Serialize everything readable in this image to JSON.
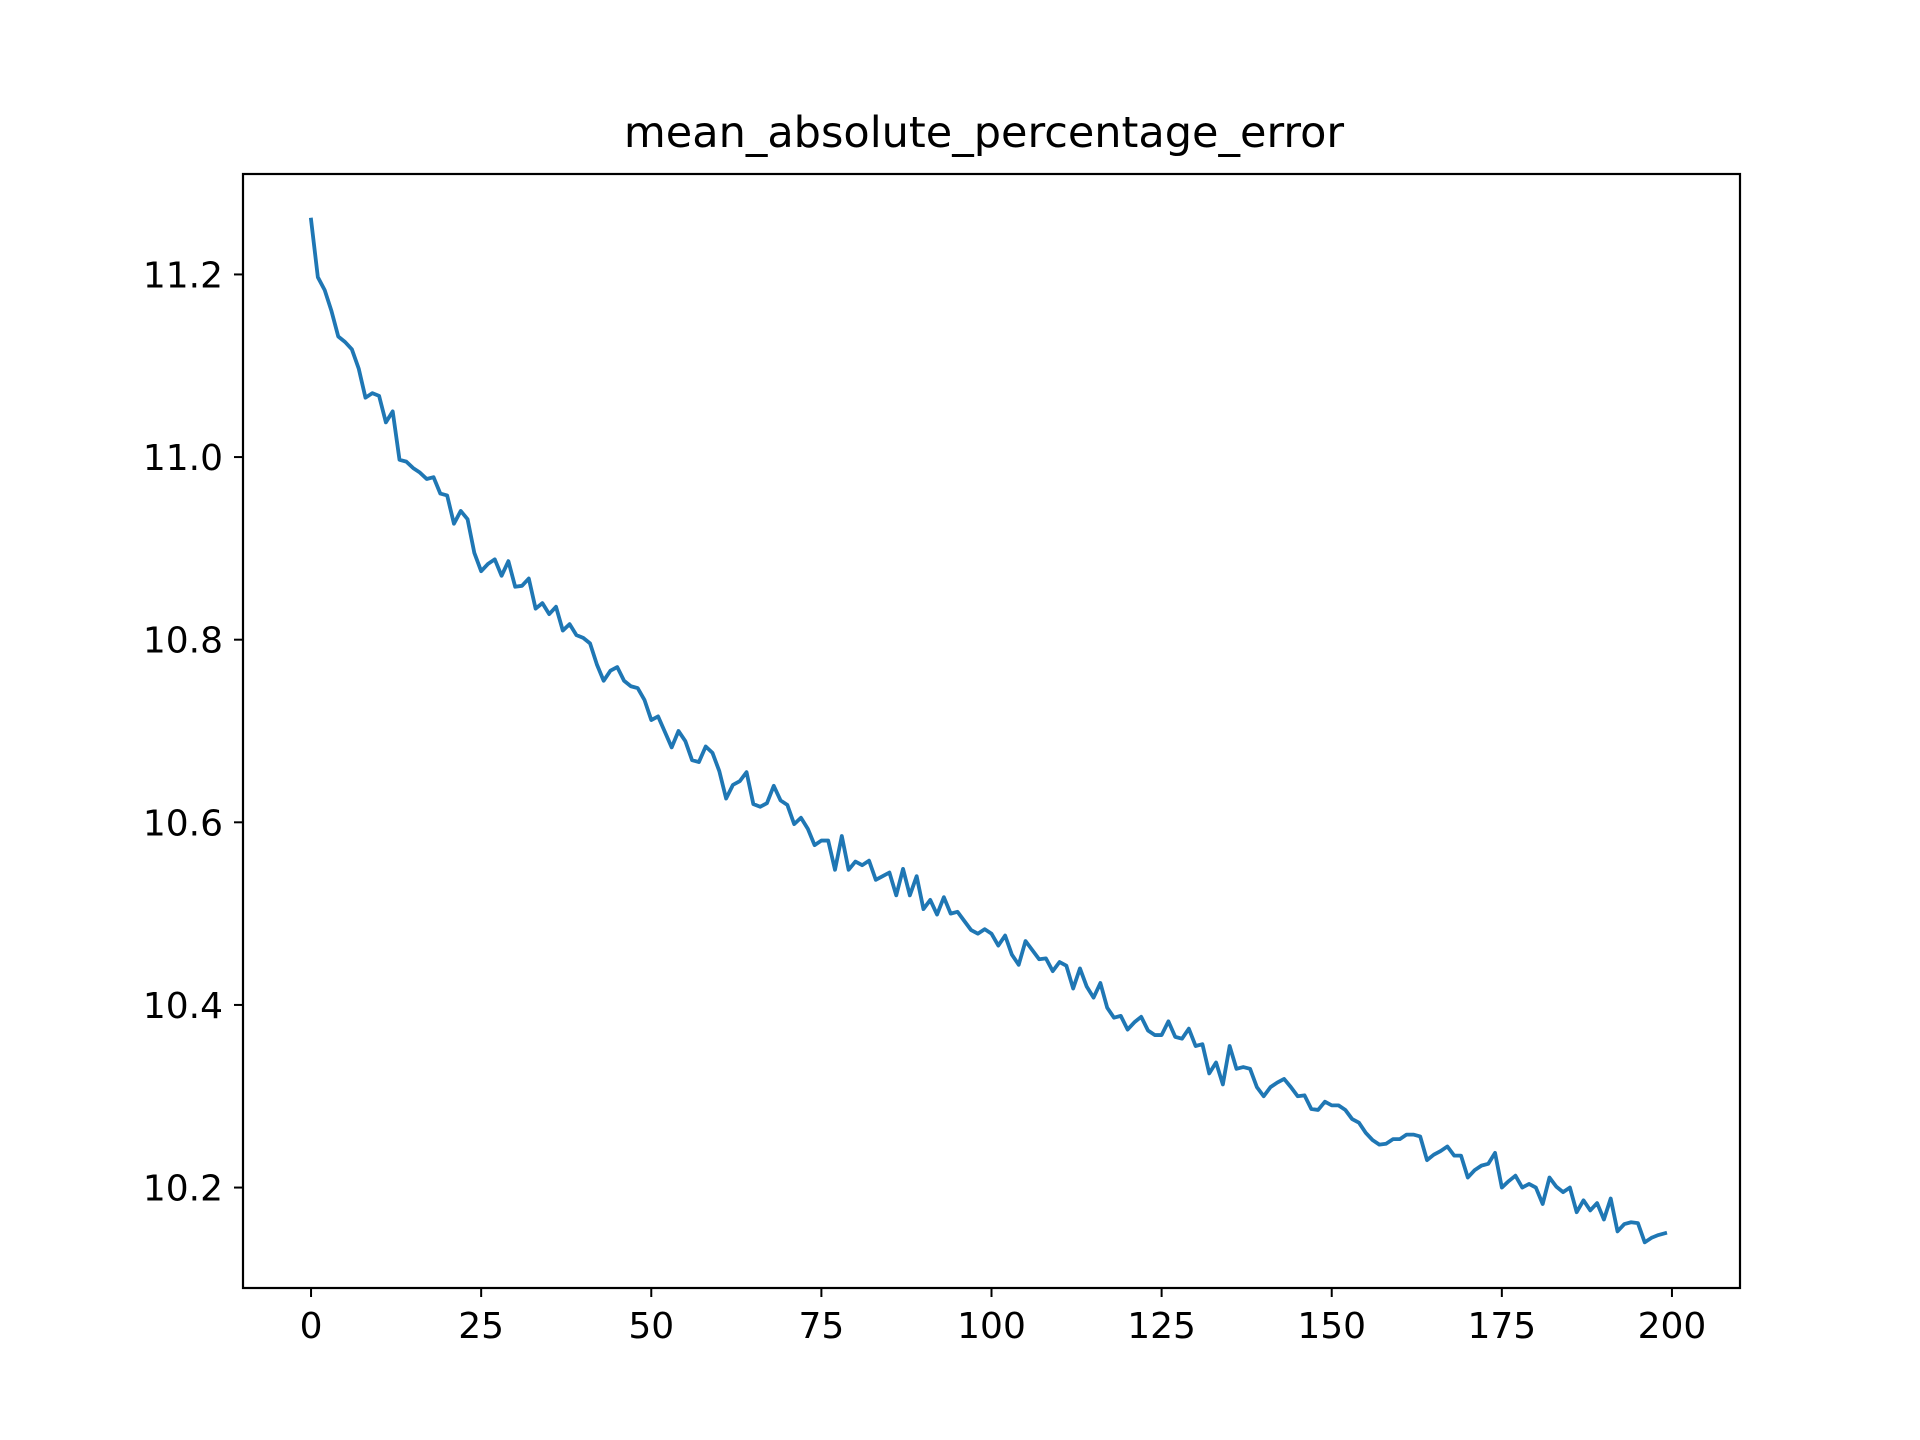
{
  "chart_data": {
    "type": "line",
    "title": "mean_absolute_percentage_error",
    "xlabel": "",
    "ylabel": "",
    "xlim": [
      -10,
      210
    ],
    "ylim": [
      10.09,
      11.31
    ],
    "x_ticks": [
      0,
      25,
      50,
      75,
      100,
      125,
      150,
      175,
      200
    ],
    "x_tick_labels": [
      "0",
      "25",
      "50",
      "75",
      "100",
      "125",
      "150",
      "175",
      "200"
    ],
    "y_ticks": [
      10.2,
      10.4,
      10.6,
      10.8,
      11.0,
      11.2
    ],
    "y_tick_labels": [
      "10.2",
      "10.4",
      "10.6",
      "10.8",
      "11.0",
      "11.2"
    ],
    "grid": false,
    "series": [
      {
        "color": "#1f77b4",
        "x": [
          0,
          1,
          2,
          3,
          4,
          5,
          6,
          7,
          8,
          9,
          10,
          11,
          12,
          13,
          14,
          15,
          16,
          17,
          18,
          19,
          20,
          21,
          22,
          23,
          24,
          25,
          26,
          27,
          28,
          29,
          30,
          31,
          32,
          33,
          34,
          35,
          36,
          37,
          38,
          39,
          40,
          41,
          42,
          43,
          44,
          45,
          46,
          47,
          48,
          49,
          50,
          51,
          52,
          53,
          54,
          55,
          56,
          57,
          58,
          59,
          60,
          61,
          62,
          63,
          64,
          65,
          66,
          67,
          68,
          69,
          70,
          71,
          72,
          73,
          74,
          75,
          76,
          77,
          78,
          79,
          80,
          81,
          82,
          83,
          84,
          85,
          86,
          87,
          88,
          89,
          90,
          91,
          92,
          93,
          94,
          95,
          96,
          97,
          98,
          99,
          100,
          101,
          102,
          103,
          104,
          105,
          106,
          107,
          108,
          109,
          110,
          111,
          112,
          113,
          114,
          115,
          116,
          117,
          118,
          119,
          120,
          121,
          122,
          123,
          124,
          125,
          126,
          127,
          128,
          129,
          130,
          131,
          132,
          133,
          134,
          135,
          136,
          137,
          138,
          139,
          140,
          141,
          142,
          143,
          144,
          145,
          146,
          147,
          148,
          149,
          150,
          151,
          152,
          153,
          154,
          155,
          156,
          157,
          158,
          159,
          160,
          161,
          162,
          163,
          164,
          165,
          166,
          167,
          168,
          169,
          170,
          171,
          172,
          173,
          174,
          175,
          176,
          177,
          178,
          179,
          180,
          181,
          182,
          183,
          184,
          185,
          186,
          187,
          188,
          189,
          190,
          191,
          192,
          193,
          194,
          195,
          196,
          197,
          198,
          199
        ],
        "values": [
          11.26,
          11.197,
          11.183,
          11.16,
          11.132,
          11.126,
          11.118,
          11.097,
          11.065,
          11.07,
          11.067,
          11.038,
          11.05,
          10.997,
          10.995,
          10.988,
          10.983,
          10.976,
          10.978,
          10.96,
          10.958,
          10.927,
          10.941,
          10.932,
          10.895,
          10.875,
          10.883,
          10.888,
          10.87,
          10.886,
          10.858,
          10.859,
          10.867,
          10.834,
          10.84,
          10.828,
          10.836,
          10.81,
          10.817,
          10.805,
          10.802,
          10.796,
          10.773,
          10.755,
          10.766,
          10.77,
          10.755,
          10.749,
          10.747,
          10.734,
          10.712,
          10.716,
          10.699,
          10.682,
          10.7,
          10.689,
          10.668,
          10.666,
          10.683,
          10.676,
          10.656,
          10.626,
          10.641,
          10.645,
          10.655,
          10.62,
          10.617,
          10.621,
          10.64,
          10.624,
          10.619,
          10.598,
          10.605,
          10.593,
          10.575,
          10.58,
          10.58,
          10.548,
          10.585,
          10.548,
          10.557,
          10.553,
          10.558,
          10.537,
          10.541,
          10.545,
          10.52,
          10.549,
          10.52,
          10.541,
          10.505,
          10.515,
          10.499,
          10.518,
          10.5,
          10.502,
          10.492,
          10.482,
          10.478,
          10.483,
          10.478,
          10.465,
          10.476,
          10.455,
          10.444,
          10.47,
          10.46,
          10.45,
          10.451,
          10.437,
          10.447,
          10.443,
          10.418,
          10.44,
          10.42,
          10.408,
          10.424,
          10.397,
          10.386,
          10.388,
          10.373,
          10.381,
          10.387,
          10.372,
          10.367,
          10.367,
          10.382,
          10.365,
          10.363,
          10.374,
          10.355,
          10.357,
          10.325,
          10.337,
          10.313,
          10.355,
          10.33,
          10.332,
          10.33,
          10.31,
          10.3,
          10.31,
          10.315,
          10.319,
          10.31,
          10.3,
          10.301,
          10.286,
          10.285,
          10.294,
          10.29,
          10.29,
          10.285,
          10.275,
          10.271,
          10.26,
          10.252,
          10.247,
          10.248,
          10.253,
          10.253,
          10.258,
          10.258,
          10.256,
          10.23,
          10.236,
          10.24,
          10.245,
          10.235,
          10.235,
          10.211,
          10.219,
          10.224,
          10.226,
          10.238,
          10.2,
          10.207,
          10.213,
          10.2,
          10.204,
          10.2,
          10.182,
          10.211,
          10.201,
          10.195,
          10.2,
          10.173,
          10.186,
          10.175,
          10.183,
          10.165,
          10.188,
          10.152,
          10.16,
          10.162,
          10.161,
          10.14,
          10.145,
          10.148,
          10.15
        ]
      }
    ]
  }
}
